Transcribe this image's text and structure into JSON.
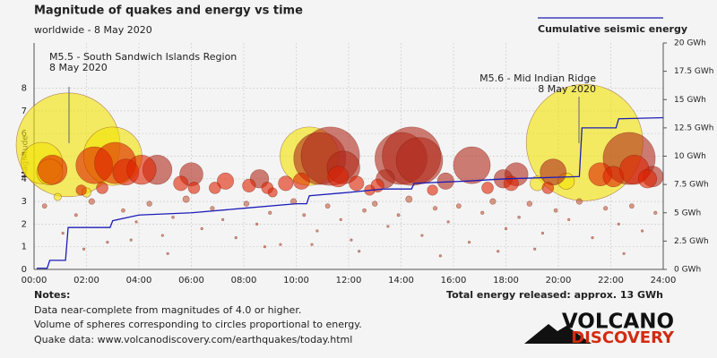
{
  "chart_data": {
    "type": "bubble",
    "title": "Magnitude of quakes and energy vs time",
    "subtitle": "worldwide -  8 May 2020",
    "ylabel": "Magnitude",
    "legend_label": "Cumulative seismic energy",
    "total_label": "Total energy released: approx. 13 GWh",
    "annotations": [
      {
        "text": "M5.5 - South Sandwich Islands Region",
        "date": "8 May 2020"
      },
      {
        "text": "M5.6 - Mid Indian Ridge",
        "date": "8 May 2020"
      }
    ],
    "xlim": [
      0,
      24
    ],
    "xticks": [
      {
        "value": 0,
        "label": "00:00"
      },
      {
        "value": 2,
        "label": "02:00"
      },
      {
        "value": 4,
        "label": "04:00"
      },
      {
        "value": 6,
        "label": "06:00"
      },
      {
        "value": 8,
        "label": "08:00"
      },
      {
        "value": 10,
        "label": "10:00"
      },
      {
        "value": 12,
        "label": "12:00"
      },
      {
        "value": 14,
        "label": "14:00"
      },
      {
        "value": 16,
        "label": "16:00"
      },
      {
        "value": 18,
        "label": "18:00"
      },
      {
        "value": 20,
        "label": "20:00"
      },
      {
        "value": 22,
        "label": "22:00"
      },
      {
        "value": 24,
        "label": "24:00"
      }
    ],
    "ylim": [
      0,
      10
    ],
    "yticks": [
      0,
      1,
      2,
      3,
      4,
      5,
      6,
      7,
      8
    ],
    "y2lim": [
      0,
      20
    ],
    "y2ticks": [
      {
        "value": 0,
        "label": "0 GWh"
      },
      {
        "value": 2.5,
        "label": "2.5 GWh"
      },
      {
        "value": 5,
        "label": "5 GWh"
      },
      {
        "value": 7.5,
        "label": "7.5 GWh"
      },
      {
        "value": 10,
        "label": "10 GWh"
      },
      {
        "value": 12.5,
        "label": "12.5 GWh"
      },
      {
        "value": 15,
        "label": "15 GWh"
      },
      {
        "value": 17.5,
        "label": "17.5 GWh"
      },
      {
        "value": 20,
        "label": "20 GWh"
      }
    ],
    "grid": true,
    "series": [
      {
        "color": "#f2e200",
        "x": [
          1.3,
          0.3,
          0.6,
          3.0,
          10.5,
          21.0,
          2.0,
          19.2,
          20.3,
          0.9
        ],
        "values": [
          5.5,
          4.7,
          4.3,
          5.0,
          5.0,
          5.6,
          3.4,
          3.8,
          3.9,
          3.2
        ]
      },
      {
        "color": "#b02a1a",
        "x": [
          10.9,
          11.3,
          11.8,
          14.0,
          14.4,
          14.7,
          16.7,
          18.4,
          22.7,
          23.6,
          6.0,
          4.7,
          15.7,
          19.8,
          8.6,
          13.4,
          17.9
        ],
        "values": [
          4.9,
          5.0,
          4.5,
          4.9,
          5.0,
          4.8,
          4.6,
          4.2,
          4.9,
          4.1,
          4.2,
          4.4,
          3.9,
          4.3,
          4.0,
          4.0,
          4.0
        ]
      },
      {
        "color": "#dd2200",
        "x": [
          2.3,
          3.1,
          3.5,
          4.1,
          0.7,
          1.8,
          2.6,
          5.6,
          6.9,
          7.3,
          8.2,
          8.9,
          9.6,
          10.2,
          11.6,
          12.3,
          13.1,
          15.2,
          17.3,
          18.2,
          21.6,
          22.1,
          22.9,
          23.4,
          6.1,
          9.1,
          12.8,
          19.6
        ],
        "values": [
          4.6,
          4.7,
          4.3,
          4.4,
          4.4,
          3.5,
          3.6,
          3.8,
          3.6,
          3.9,
          3.7,
          3.6,
          3.8,
          3.9,
          4.1,
          3.8,
          3.7,
          3.5,
          3.6,
          3.8,
          4.2,
          4.1,
          4.4,
          4.0,
          3.6,
          3.4,
          3.5,
          3.6
        ]
      },
      {
        "color": "#c05a3a",
        "x": [
          0.4,
          1.1,
          1.6,
          2.2,
          2.8,
          3.4,
          3.9,
          4.4,
          4.9,
          5.3,
          5.8,
          6.4,
          6.8,
          7.2,
          7.7,
          8.1,
          8.5,
          9.0,
          9.4,
          9.9,
          10.3,
          10.8,
          11.2,
          11.7,
          12.1,
          12.6,
          13.0,
          13.5,
          13.9,
          14.3,
          14.8,
          15.3,
          15.8,
          16.2,
          16.6,
          17.1,
          17.5,
          18.0,
          18.5,
          18.9,
          19.4,
          19.9,
          20.4,
          20.8,
          21.3,
          21.8,
          22.3,
          22.8,
          23.2,
          23.7,
          1.9,
          5.1,
          8.8,
          12.4,
          15.5,
          19.1,
          22.5,
          3.7,
          10.6,
          17.7
        ],
        "values": [
          2.8,
          1.6,
          2.4,
          3.0,
          1.2,
          2.6,
          2.1,
          2.9,
          1.5,
          2.3,
          3.1,
          1.8,
          2.7,
          2.2,
          1.4,
          2.9,
          2.0,
          2.5,
          1.1,
          3.0,
          2.4,
          1.7,
          2.8,
          2.2,
          1.3,
          2.6,
          2.9,
          1.9,
          2.4,
          3.1,
          1.5,
          2.7,
          2.1,
          2.8,
          1.2,
          2.5,
          3.0,
          1.8,
          2.3,
          2.9,
          1.6,
          2.6,
          2.2,
          3.0,
          1.4,
          2.7,
          2.0,
          2.8,
          1.7,
          2.5,
          0.9,
          0.7,
          1.0,
          0.8,
          0.6,
          0.9,
          0.7,
          1.3,
          1.1,
          0.8
        ]
      },
      {
        "color": "#1c1cb8",
        "axis": "y2",
        "kind": "line",
        "x": [
          0.1,
          0.5,
          0.6,
          1.2,
          1.3,
          2.9,
          3.0,
          4.0,
          6.0,
          8.0,
          10.0,
          10.4,
          10.5,
          12.0,
          13.3,
          14.4,
          14.5,
          16.5,
          18.0,
          20.8,
          20.9,
          22.2,
          22.3,
          24.0
        ],
        "values": [
          0.1,
          0.1,
          0.8,
          0.8,
          3.7,
          3.7,
          4.3,
          4.8,
          5.0,
          5.4,
          5.8,
          5.8,
          6.5,
          6.8,
          7.1,
          7.1,
          7.6,
          7.8,
          8.0,
          8.2,
          12.5,
          12.5,
          13.3,
          13.4
        ]
      }
    ]
  },
  "notes": {
    "heading": "Notes:",
    "lines": [
      "Data near-complete from magnitudes of 4.0 or higher.",
      "Volume of spheres corresponding to circles proportional to energy.",
      "Quake data: www.volcanodiscovery.com/earthquakes/today.html"
    ]
  },
  "logo": {
    "line1": "VOLCANO",
    "line2": "DISCOVERY"
  }
}
